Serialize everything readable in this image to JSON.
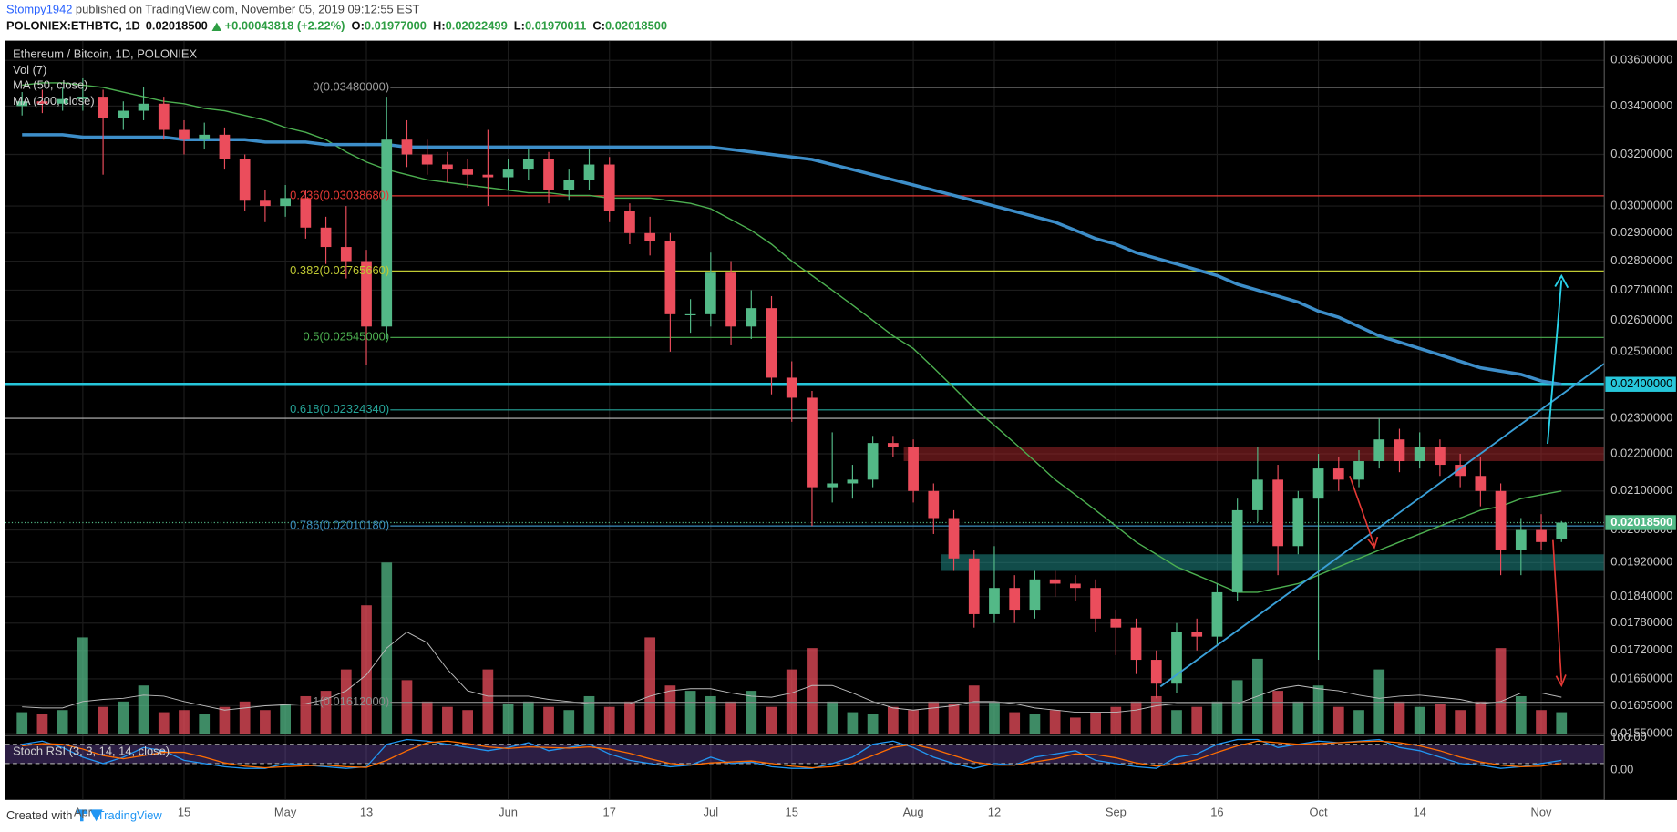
{
  "header": {
    "author": "Stompy1942",
    "published": "published on TradingView.com, November 05, 2019 09:12:55 EST",
    "symbol": "POLONIEX:ETHBTC, 1D",
    "last": "0.02018500",
    "change": "+0.00043818 (+2.22%)",
    "ohlc": [
      {
        "key": "O:",
        "value": "0.01977000"
      },
      {
        "key": "H:",
        "value": "0.02022499"
      },
      {
        "key": "L:",
        "value": "0.01970011"
      },
      {
        "key": "C:",
        "value": "0.02018500"
      }
    ]
  },
  "footer": {
    "created": "Created with",
    "brand": "TradingView"
  },
  "chart_data": {
    "type": "candlestick",
    "title": "Ethereum / Bitcoin, 1D, POLONIEX",
    "log_scale": true,
    "grid": true,
    "up_color": "#53b987",
    "down_color": "#eb4d5c",
    "categories": [
      null,
      null,
      null,
      "Apr",
      null,
      null,
      null,
      null,
      "15",
      null,
      null,
      null,
      null,
      "May",
      null,
      null,
      null,
      "13",
      null,
      null,
      null,
      null,
      null,
      null,
      "Jun",
      null,
      null,
      null,
      null,
      "17",
      null,
      null,
      null,
      null,
      "Jul",
      null,
      null,
      null,
      "15",
      null,
      null,
      null,
      null,
      null,
      "Aug",
      null,
      null,
      null,
      "12",
      null,
      null,
      null,
      null,
      null,
      "Sep",
      null,
      null,
      null,
      null,
      "16",
      null,
      null,
      null,
      null,
      "Oct",
      null,
      null,
      null,
      null,
      "14",
      null,
      null,
      null,
      null,
      null,
      "Nov",
      null
    ],
    "open": [
      0.034,
      0.0342,
      0.0341,
      0.0343,
      0.0344,
      0.0335,
      0.0338,
      0.0341,
      0.033,
      0.0326,
      0.0328,
      0.0318,
      0.0302,
      0.03,
      0.0303,
      0.0292,
      0.0285,
      0.028,
      0.0258,
      0.0326,
      0.032,
      0.0316,
      0.0314,
      0.0312,
      0.0311,
      0.0314,
      0.0318,
      0.0306,
      0.031,
      0.0316,
      0.0298,
      0.029,
      0.0287,
      0.0262,
      0.0262,
      0.0276,
      0.0258,
      0.0264,
      0.0242,
      0.0236,
      0.0211,
      0.0212,
      0.0213,
      0.0223,
      0.0222,
      0.021,
      0.0203,
      0.0193,
      0.018,
      0.0186,
      0.0181,
      0.0188,
      0.0187,
      0.0186,
      0.0179,
      0.0177,
      0.017,
      0.0165,
      0.0176,
      0.0175,
      0.0185,
      0.0205,
      0.0213,
      0.0196,
      0.0208,
      0.0216,
      0.0213,
      0.0218,
      0.0224,
      0.0218,
      0.0222,
      0.0217,
      0.0214,
      0.021,
      0.0195,
      0.02,
      0.01977
    ],
    "high": [
      0.0346,
      0.0347,
      0.0348,
      0.0352,
      0.0347,
      0.0342,
      0.0348,
      0.0344,
      0.0334,
      0.0333,
      0.0331,
      0.032,
      0.0306,
      0.0308,
      0.0306,
      0.0296,
      0.03,
      0.0284,
      0.0344,
      0.0334,
      0.0326,
      0.0321,
      0.0318,
      0.033,
      0.0318,
      0.0322,
      0.0321,
      0.0314,
      0.0322,
      0.0319,
      0.0301,
      0.0296,
      0.029,
      0.0267,
      0.0283,
      0.028,
      0.027,
      0.0268,
      0.0247,
      0.0238,
      0.0226,
      0.0217,
      0.0225,
      0.0225,
      0.0224,
      0.0212,
      0.0205,
      0.0195,
      0.0196,
      0.0189,
      0.019,
      0.019,
      0.0189,
      0.0188,
      0.0181,
      0.0179,
      0.0172,
      0.0178,
      0.0179,
      0.0187,
      0.0208,
      0.0222,
      0.0217,
      0.021,
      0.022,
      0.0219,
      0.0221,
      0.023,
      0.0227,
      0.0226,
      0.0224,
      0.022,
      0.0219,
      0.0212,
      0.0203,
      0.0204,
      0.02022499
    ],
    "low": [
      0.0336,
      0.0337,
      0.0338,
      0.0338,
      0.0312,
      0.033,
      0.0334,
      0.0326,
      0.032,
      0.0322,
      0.0314,
      0.0298,
      0.0294,
      0.0296,
      0.0288,
      0.0279,
      0.0274,
      0.0246,
      0.0254,
      0.0315,
      0.0312,
      0.0309,
      0.0307,
      0.03,
      0.0306,
      0.031,
      0.0301,
      0.0302,
      0.0306,
      0.0294,
      0.0286,
      0.0282,
      0.025,
      0.0256,
      0.0258,
      0.0252,
      0.0254,
      0.0237,
      0.0229,
      0.0201,
      0.0207,
      0.0208,
      0.0211,
      0.0219,
      0.0207,
      0.0199,
      0.019,
      0.0177,
      0.0178,
      0.0178,
      0.0179,
      0.0184,
      0.0183,
      0.0176,
      0.0171,
      0.0167,
      0.0162,
      0.0163,
      0.0172,
      0.0173,
      0.0183,
      0.0202,
      0.0189,
      0.0194,
      0.017,
      0.021,
      0.0211,
      0.0216,
      0.0215,
      0.0216,
      0.0214,
      0.0211,
      0.0206,
      0.0189,
      0.0189,
      0.0195,
      0.01970011
    ],
    "close": [
      0.0342,
      0.0341,
      0.0343,
      0.0344,
      0.0335,
      0.0338,
      0.0341,
      0.033,
      0.0326,
      0.0328,
      0.0318,
      0.0302,
      0.03,
      0.0303,
      0.0292,
      0.0285,
      0.028,
      0.0258,
      0.0326,
      0.032,
      0.0316,
      0.0314,
      0.0312,
      0.0311,
      0.0314,
      0.0318,
      0.0306,
      0.031,
      0.0316,
      0.0298,
      0.029,
      0.0287,
      0.0262,
      0.0262,
      0.0276,
      0.0258,
      0.0264,
      0.0242,
      0.0236,
      0.0211,
      0.0212,
      0.0213,
      0.0223,
      0.0222,
      0.021,
      0.0203,
      0.0193,
      0.018,
      0.0186,
      0.0181,
      0.0188,
      0.0187,
      0.0186,
      0.0179,
      0.0177,
      0.017,
      0.0165,
      0.0176,
      0.0175,
      0.0185,
      0.0205,
      0.0213,
      0.0196,
      0.0208,
      0.0216,
      0.0213,
      0.0218,
      0.0224,
      0.0218,
      0.0222,
      0.0217,
      0.0214,
      0.021,
      0.0195,
      0.02,
      0.0197,
      0.020185
    ],
    "ylim": [
      0.0155,
      0.0369
    ],
    "yticks": [
      {
        "value": 0.036,
        "label": "0.03600000"
      },
      {
        "value": 0.034,
        "label": "0.03400000"
      },
      {
        "value": 0.032,
        "label": "0.03200000"
      },
      {
        "value": 0.03,
        "label": "0.03000000"
      },
      {
        "value": 0.029,
        "label": "0.02900000"
      },
      {
        "value": 0.028,
        "label": "0.02800000"
      },
      {
        "value": 0.027,
        "label": "0.02700000"
      },
      {
        "value": 0.026,
        "label": "0.02600000"
      },
      {
        "value": 0.025,
        "label": "0.02500000"
      },
      {
        "value": 0.023,
        "label": "0.02300000"
      },
      {
        "value": 0.022,
        "label": "0.02200000"
      },
      {
        "value": 0.021,
        "label": "0.02100000"
      },
      {
        "value": 0.02,
        "label": "0.02000000"
      },
      {
        "value": 0.0192,
        "label": "0.01920000"
      },
      {
        "value": 0.0184,
        "label": "0.01840000"
      },
      {
        "value": 0.0178,
        "label": "0.01780000"
      },
      {
        "value": 0.0172,
        "label": "0.01720000"
      },
      {
        "value": 0.0166,
        "label": "0.01660000"
      },
      {
        "value": 0.01605,
        "label": "0.01605000"
      },
      {
        "value": 0.0155,
        "label": "0.01550000"
      }
    ],
    "series": [
      {
        "name": "MA (50, close)",
        "color": "#4caf50",
        "width": 1.2,
        "values": [
          0.0349,
          0.035,
          0.035,
          0.0349,
          0.0348,
          0.0346,
          0.0344,
          0.0342,
          0.0341,
          0.0339,
          0.0338,
          0.0336,
          0.0334,
          0.0331,
          0.0329,
          0.0326,
          0.0321,
          0.0317,
          0.0314,
          0.0312,
          0.031,
          0.0309,
          0.0308,
          0.0307,
          0.0306,
          0.0305,
          0.0305,
          0.0304,
          0.0304,
          0.0303,
          0.0303,
          0.0303,
          0.0302,
          0.0301,
          0.0299,
          0.0295,
          0.0291,
          0.0286,
          0.028,
          0.0275,
          0.027,
          0.0265,
          0.026,
          0.0255,
          0.0251,
          0.0245,
          0.0239,
          0.0233,
          0.0228,
          0.0223,
          0.0218,
          0.0213,
          0.0209,
          0.0205,
          0.0201,
          0.0197,
          0.0194,
          0.0191,
          0.0189,
          0.0187,
          0.0185,
          0.0185,
          0.0186,
          0.0187,
          0.0189,
          0.0191,
          0.0193,
          0.0195,
          0.0197,
          0.0199,
          0.0201,
          0.0203,
          0.0205,
          0.0206,
          0.0208,
          0.0209,
          0.021
        ]
      },
      {
        "name": "MA (200, close)",
        "color": "#3d8ec9",
        "width": 3,
        "values": [
          0.0328,
          0.0328,
          0.0328,
          0.0327,
          0.0327,
          0.0327,
          0.0327,
          0.0327,
          0.0326,
          0.0326,
          0.0326,
          0.0326,
          0.0325,
          0.0325,
          0.0325,
          0.0324,
          0.0324,
          0.0324,
          0.0324,
          0.0323,
          0.0323,
          0.0323,
          0.0323,
          0.0323,
          0.0323,
          0.0323,
          0.0323,
          0.0323,
          0.0323,
          0.0323,
          0.0323,
          0.0323,
          0.0323,
          0.0323,
          0.0323,
          0.0322,
          0.0321,
          0.032,
          0.0319,
          0.0318,
          0.0316,
          0.0314,
          0.0312,
          0.031,
          0.0308,
          0.0306,
          0.0304,
          0.0302,
          0.03,
          0.0298,
          0.0296,
          0.0294,
          0.0291,
          0.0288,
          0.0286,
          0.0283,
          0.0281,
          0.0279,
          0.0277,
          0.0275,
          0.0272,
          0.027,
          0.0268,
          0.0266,
          0.0263,
          0.0261,
          0.0258,
          0.0255,
          0.0253,
          0.0251,
          0.0249,
          0.0247,
          0.0245,
          0.0244,
          0.0243,
          0.0241,
          0.024
        ]
      }
    ],
    "volume": {
      "name": "Vol (7)",
      "ylim": [
        0,
        160
      ],
      "ma_color": "#bdbdbd",
      "values": [
        20,
        18,
        22,
        90,
        25,
        30,
        45,
        20,
        22,
        18,
        25,
        30,
        22,
        28,
        35,
        40,
        60,
        120,
        160,
        50,
        30,
        25,
        22,
        60,
        28,
        30,
        25,
        22,
        35,
        25,
        30,
        90,
        45,
        40,
        35,
        30,
        40,
        25,
        60,
        80,
        30,
        20,
        18,
        25,
        22,
        30,
        28,
        45,
        30,
        20,
        18,
        22,
        15,
        20,
        25,
        30,
        35,
        22,
        25,
        30,
        50,
        70,
        40,
        30,
        45,
        25,
        22,
        60,
        30,
        25,
        28,
        22,
        30,
        80,
        35,
        22,
        20
      ],
      "ma_values": [
        25,
        24,
        24,
        30,
        32,
        33,
        36,
        35,
        30,
        26,
        22,
        24,
        26,
        27,
        28,
        32,
        40,
        55,
        80,
        95,
        85,
        60,
        40,
        35,
        35,
        35,
        32,
        30,
        28,
        28,
        28,
        35,
        40,
        42,
        42,
        38,
        35,
        34,
        38,
        45,
        45,
        38,
        30,
        24,
        22,
        24,
        26,
        30,
        30,
        28,
        24,
        22,
        20,
        20,
        20,
        22,
        26,
        28,
        28,
        28,
        28,
        35,
        42,
        45,
        42,
        40,
        36,
        33,
        35,
        36,
        34,
        32,
        28,
        30,
        38,
        38,
        34
      ]
    },
    "fib_levels": [
      {
        "label": "0(0.03480000)",
        "value": 0.0348,
        "color": "#9e9e9e"
      },
      {
        "label": "0.236(0.03038680)",
        "value": 0.0303868,
        "color": "#e53935"
      },
      {
        "label": "0.382(0.02765660)",
        "value": 0.0276566,
        "color": "#c0ca33"
      },
      {
        "label": "0.5(0.02545000)",
        "value": 0.02545,
        "color": "#4caf50"
      },
      {
        "label": "0.618(0.02324340)",
        "value": 0.0232434,
        "color": "#26a69a"
      },
      {
        "label": "0.786(0.02010180)",
        "value": 0.0201018,
        "color": "#3c8dbc"
      },
      {
        "label": "1(0.01612000)",
        "value": 0.01612,
        "color": "#8d8d8d"
      }
    ],
    "levels": [
      {
        "value": 0.024,
        "label": "0.02400000",
        "color": "#26c6da"
      },
      {
        "value": 0.023,
        "color": "#bdbdbd"
      }
    ],
    "zones": [
      {
        "from": 0.0218,
        "to": 0.0222,
        "color": "#a0262a"
      },
      {
        "from": 0.019,
        "to": 0.0194,
        "color": "#1f8a86"
      }
    ],
    "current_price": {
      "value": 0.020185,
      "label": "0.02018500",
      "color": "#53b987"
    },
    "stoch": {
      "name": "Stoch RSI (3, 3, 14, 14, close)",
      "ylim": [
        0,
        100
      ],
      "band": [
        20,
        80
      ],
      "yticks": [
        {
          "value": 100,
          "label": "100.00"
        },
        {
          "value": 0,
          "label": "0.00"
        }
      ],
      "series": [
        {
          "color": "#2196f3",
          "values": [
            80,
            90,
            70,
            40,
            20,
            40,
            70,
            60,
            30,
            20,
            10,
            5,
            5,
            20,
            15,
            10,
            5,
            10,
            80,
            95,
            90,
            80,
            70,
            60,
            70,
            85,
            60,
            70,
            80,
            50,
            30,
            20,
            10,
            15,
            40,
            20,
            25,
            10,
            5,
            5,
            20,
            40,
            80,
            90,
            70,
            40,
            20,
            5,
            20,
            15,
            40,
            50,
            60,
            30,
            20,
            10,
            5,
            40,
            50,
            80,
            95,
            95,
            70,
            80,
            90,
            85,
            90,
            95,
            70,
            60,
            40,
            20,
            15,
            5,
            10,
            20,
            30
          ]
        },
        {
          "color": "#ff6d00",
          "values": [
            75,
            82,
            80,
            65,
            45,
            35,
            45,
            55,
            55,
            40,
            22,
            12,
            7,
            10,
            13,
            15,
            10,
            8,
            30,
            60,
            85,
            90,
            82,
            72,
            67,
            72,
            70,
            68,
            72,
            65,
            52,
            35,
            20,
            15,
            22,
            25,
            28,
            20,
            12,
            7,
            10,
            20,
            45,
            70,
            80,
            65,
            45,
            25,
            15,
            15,
            25,
            35,
            50,
            48,
            38,
            22,
            12,
            18,
            32,
            55,
            75,
            90,
            85,
            80,
            82,
            85,
            88,
            90,
            85,
            75,
            60,
            40,
            25,
            15,
            10,
            12,
            20
          ]
        }
      ]
    }
  }
}
